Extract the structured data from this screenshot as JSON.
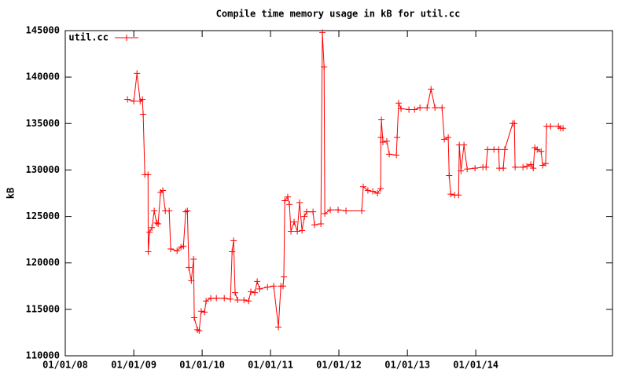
{
  "chart_data": {
    "type": "line",
    "title": "Compile time memory usage in kB for util.cc",
    "ylabel": "kB",
    "legend": "top-left",
    "xlim": [
      "2008-01-01",
      "2016-01-01"
    ],
    "xticks": [
      {
        "value": "2008-01-01",
        "label": "01/01/08"
      },
      {
        "value": "2009-01-01",
        "label": "01/01/09"
      },
      {
        "value": "2010-01-01",
        "label": "01/01/10"
      },
      {
        "value": "2011-01-01",
        "label": "01/01/11"
      },
      {
        "value": "2012-01-01",
        "label": "01/01/12"
      },
      {
        "value": "2013-01-01",
        "label": "01/01/13"
      },
      {
        "value": "2014-01-01",
        "label": "01/01/14"
      }
    ],
    "ylim": [
      110000,
      145000
    ],
    "yticks": [
      110000,
      115000,
      120000,
      125000,
      130000,
      135000,
      140000,
      145000
    ],
    "x": [
      "2008-11-28",
      "2009-01-01",
      "2009-01-18",
      "2009-02-04",
      "2009-02-16",
      "2009-02-20",
      "2009-03-01",
      "2009-03-18",
      "2009-03-19",
      "2009-03-26",
      "2009-04-08",
      "2009-04-20",
      "2009-05-03",
      "2009-05-11",
      "2009-05-24",
      "2009-06-05",
      "2009-06-18",
      "2009-07-09",
      "2009-07-17",
      "2009-08-20",
      "2009-09-10",
      "2009-09-23",
      "2009-10-05",
      "2009-10-14",
      "2009-10-22",
      "2009-11-04",
      "2009-11-16",
      "2009-11-20",
      "2009-12-07",
      "2009-12-16",
      "2009-12-27",
      "2010-01-14",
      "2010-01-22",
      "2010-02-16",
      "2010-03-18",
      "2010-04-29",
      "2010-06-01",
      "2010-06-10",
      "2010-06-18",
      "2010-06-26",
      "2010-07-09",
      "2010-08-12",
      "2010-09-06",
      "2010-09-18",
      "2010-10-09",
      "2010-10-22",
      "2010-11-04",
      "2010-12-16",
      "2011-01-18",
      "2011-02-12",
      "2011-02-25",
      "2011-03-09",
      "2011-03-13",
      "2011-03-18",
      "2011-04-03",
      "2011-04-12",
      "2011-04-20",
      "2011-05-07",
      "2011-05-24",
      "2011-06-05",
      "2011-06-18",
      "2011-07-01",
      "2011-07-13",
      "2011-08-16",
      "2011-08-24",
      "2011-09-27",
      "2011-10-05",
      "2011-10-14",
      "2011-10-18",
      "2011-11-16",
      "2011-12-28",
      "2012-02-08",
      "2012-05-02",
      "2012-05-10",
      "2012-06-04",
      "2012-06-30",
      "2012-07-25",
      "2012-08-11",
      "2012-08-12",
      "2012-08-15",
      "2012-08-23",
      "2012-09-13",
      "2012-09-26",
      "2012-11-03",
      "2012-11-07",
      "2012-11-15",
      "2012-11-28",
      "2013-01-09",
      "2013-02-08",
      "2013-03-09",
      "2013-04-16",
      "2013-05-07",
      "2013-05-28",
      "2013-07-05",
      "2013-07-17",
      "2013-08-07",
      "2013-08-12",
      "2013-08-20",
      "2013-09-10",
      "2013-10-01",
      "2013-10-05",
      "2013-10-14",
      "2013-10-30",
      "2013-11-16",
      "2013-12-28",
      "2014-02-08",
      "2014-02-25",
      "2014-03-05",
      "2014-04-08",
      "2014-05-03",
      "2014-05-07",
      "2014-05-28",
      "2014-06-05",
      "2014-07-17",
      "2014-07-26",
      "2014-07-30",
      "2014-09-10",
      "2014-10-01",
      "2014-10-22",
      "2014-11-04",
      "2014-11-12",
      "2014-11-25",
      "2014-12-16",
      "2014-12-24",
      "2015-01-09",
      "2015-01-14",
      "2015-02-04",
      "2015-03-18",
      "2015-03-30",
      "2015-04-12"
    ],
    "series": [
      {
        "name": "util.cc",
        "color": "#ff0000",
        "values": [
          137600,
          137400,
          140400,
          137400,
          137600,
          136000,
          129500,
          129500,
          121200,
          123300,
          123800,
          125600,
          124300,
          124200,
          127600,
          127800,
          125600,
          125600,
          121500,
          121300,
          121700,
          121800,
          125500,
          125600,
          119500,
          118100,
          120400,
          114100,
          112800,
          112700,
          114800,
          114700,
          115900,
          116200,
          116200,
          116200,
          116100,
          121200,
          122400,
          116800,
          116000,
          116000,
          115900,
          116900,
          116800,
          118000,
          117200,
          117400,
          117500,
          113100,
          117500,
          117500,
          118500,
          126700,
          127100,
          126300,
          123400,
          124400,
          123400,
          126500,
          123500,
          125000,
          125500,
          125500,
          124100,
          124200,
          144800,
          141100,
          125300,
          125700,
          125700,
          125600,
          125600,
          128200,
          127800,
          127700,
          127500,
          128000,
          133500,
          135400,
          133000,
          133100,
          131700,
          131600,
          133500,
          137200,
          136600,
          136500,
          136500,
          136700,
          136700,
          138700,
          136700,
          136700,
          133300,
          133500,
          129400,
          127400,
          127300,
          127300,
          132700,
          129900,
          132700,
          130100,
          130200,
          130300,
          130300,
          132200,
          132200,
          132200,
          130200,
          130200,
          132200,
          135000,
          135000,
          130300,
          130300,
          130400,
          130600,
          130200,
          132400,
          132200,
          132000,
          130500,
          130700,
          134700,
          134700,
          134700,
          134500,
          134500
        ]
      }
    ]
  }
}
